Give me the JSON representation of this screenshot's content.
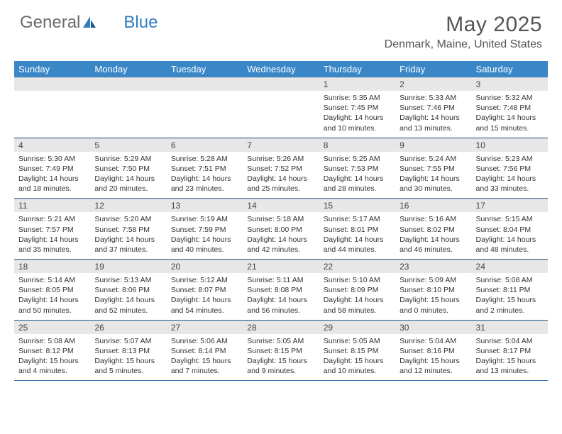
{
  "brand": {
    "part1": "General",
    "part2": "Blue"
  },
  "title": "May 2025",
  "location": "Denmark, Maine, United States",
  "colors": {
    "header_bg": "#3a87c8",
    "header_text": "#ffffff",
    "daynum_bg": "#e7e7e7",
    "row_border": "#2f6aa0",
    "brand_gray": "#6b6b6b",
    "brand_blue": "#2f7dc0"
  },
  "weekdays": [
    "Sunday",
    "Monday",
    "Tuesday",
    "Wednesday",
    "Thursday",
    "Friday",
    "Saturday"
  ],
  "weeks": [
    [
      null,
      null,
      null,
      null,
      {
        "d": "1",
        "sr": "5:35 AM",
        "ss": "7:45 PM",
        "dl": "14 hours and 10 minutes."
      },
      {
        "d": "2",
        "sr": "5:33 AM",
        "ss": "7:46 PM",
        "dl": "14 hours and 13 minutes."
      },
      {
        "d": "3",
        "sr": "5:32 AM",
        "ss": "7:48 PM",
        "dl": "14 hours and 15 minutes."
      }
    ],
    [
      {
        "d": "4",
        "sr": "5:30 AM",
        "ss": "7:49 PM",
        "dl": "14 hours and 18 minutes."
      },
      {
        "d": "5",
        "sr": "5:29 AM",
        "ss": "7:50 PM",
        "dl": "14 hours and 20 minutes."
      },
      {
        "d": "6",
        "sr": "5:28 AM",
        "ss": "7:51 PM",
        "dl": "14 hours and 23 minutes."
      },
      {
        "d": "7",
        "sr": "5:26 AM",
        "ss": "7:52 PM",
        "dl": "14 hours and 25 minutes."
      },
      {
        "d": "8",
        "sr": "5:25 AM",
        "ss": "7:53 PM",
        "dl": "14 hours and 28 minutes."
      },
      {
        "d": "9",
        "sr": "5:24 AM",
        "ss": "7:55 PM",
        "dl": "14 hours and 30 minutes."
      },
      {
        "d": "10",
        "sr": "5:23 AM",
        "ss": "7:56 PM",
        "dl": "14 hours and 33 minutes."
      }
    ],
    [
      {
        "d": "11",
        "sr": "5:21 AM",
        "ss": "7:57 PM",
        "dl": "14 hours and 35 minutes."
      },
      {
        "d": "12",
        "sr": "5:20 AM",
        "ss": "7:58 PM",
        "dl": "14 hours and 37 minutes."
      },
      {
        "d": "13",
        "sr": "5:19 AM",
        "ss": "7:59 PM",
        "dl": "14 hours and 40 minutes."
      },
      {
        "d": "14",
        "sr": "5:18 AM",
        "ss": "8:00 PM",
        "dl": "14 hours and 42 minutes."
      },
      {
        "d": "15",
        "sr": "5:17 AM",
        "ss": "8:01 PM",
        "dl": "14 hours and 44 minutes."
      },
      {
        "d": "16",
        "sr": "5:16 AM",
        "ss": "8:02 PM",
        "dl": "14 hours and 46 minutes."
      },
      {
        "d": "17",
        "sr": "5:15 AM",
        "ss": "8:04 PM",
        "dl": "14 hours and 48 minutes."
      }
    ],
    [
      {
        "d": "18",
        "sr": "5:14 AM",
        "ss": "8:05 PM",
        "dl": "14 hours and 50 minutes."
      },
      {
        "d": "19",
        "sr": "5:13 AM",
        "ss": "8:06 PM",
        "dl": "14 hours and 52 minutes."
      },
      {
        "d": "20",
        "sr": "5:12 AM",
        "ss": "8:07 PM",
        "dl": "14 hours and 54 minutes."
      },
      {
        "d": "21",
        "sr": "5:11 AM",
        "ss": "8:08 PM",
        "dl": "14 hours and 56 minutes."
      },
      {
        "d": "22",
        "sr": "5:10 AM",
        "ss": "8:09 PM",
        "dl": "14 hours and 58 minutes."
      },
      {
        "d": "23",
        "sr": "5:09 AM",
        "ss": "8:10 PM",
        "dl": "15 hours and 0 minutes."
      },
      {
        "d": "24",
        "sr": "5:08 AM",
        "ss": "8:11 PM",
        "dl": "15 hours and 2 minutes."
      }
    ],
    [
      {
        "d": "25",
        "sr": "5:08 AM",
        "ss": "8:12 PM",
        "dl": "15 hours and 4 minutes."
      },
      {
        "d": "26",
        "sr": "5:07 AM",
        "ss": "8:13 PM",
        "dl": "15 hours and 5 minutes."
      },
      {
        "d": "27",
        "sr": "5:06 AM",
        "ss": "8:14 PM",
        "dl": "15 hours and 7 minutes."
      },
      {
        "d": "28",
        "sr": "5:05 AM",
        "ss": "8:15 PM",
        "dl": "15 hours and 9 minutes."
      },
      {
        "d": "29",
        "sr": "5:05 AM",
        "ss": "8:15 PM",
        "dl": "15 hours and 10 minutes."
      },
      {
        "d": "30",
        "sr": "5:04 AM",
        "ss": "8:16 PM",
        "dl": "15 hours and 12 minutes."
      },
      {
        "d": "31",
        "sr": "5:04 AM",
        "ss": "8:17 PM",
        "dl": "15 hours and 13 minutes."
      }
    ]
  ],
  "labels": {
    "sunrise": "Sunrise:",
    "sunset": "Sunset:",
    "daylight": "Daylight:"
  }
}
